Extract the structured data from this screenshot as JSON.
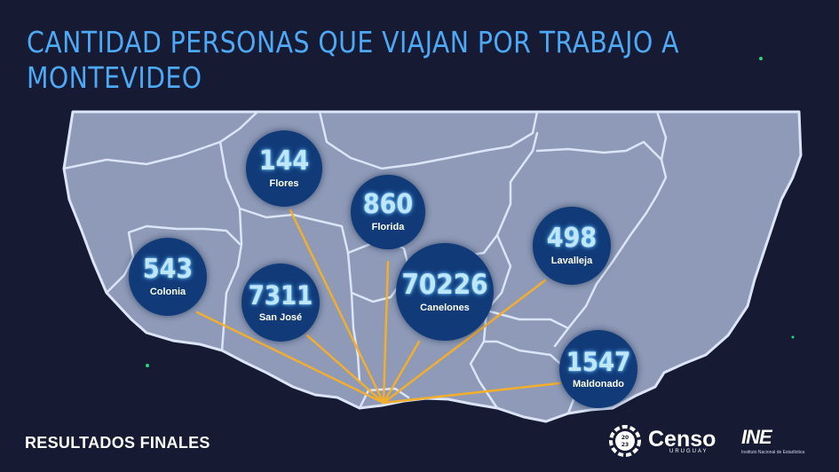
{
  "title": "CANTIDAD PERSONAS QUE VIAJAN POR TRABAJO A MONTEVIDEO",
  "footer": "RESULTADOS FINALES",
  "logos": {
    "censo": "Censo",
    "censo_year": "2023",
    "censo_country": "URUGUAY",
    "ine": "INE",
    "ine_sub": "Instituto Nacional de Estadística"
  },
  "destination": "Montevideo",
  "departments": [
    {
      "name": "Flores",
      "value": "144"
    },
    {
      "name": "Florida",
      "value": "860"
    },
    {
      "name": "Colonia",
      "value": "543"
    },
    {
      "name": "San José",
      "value": "7311"
    },
    {
      "name": "Canelones",
      "value": "70226"
    },
    {
      "name": "Lavalleja",
      "value": "498"
    },
    {
      "name": "Maldonado",
      "value": "1547"
    }
  ],
  "colors": {
    "background": "#161a33",
    "land": "#8e9ab7",
    "borders": "#dbe5f7",
    "title": "#4da9f5",
    "bubble": "#113a78",
    "flow_lines": "#f2ae2c"
  }
}
